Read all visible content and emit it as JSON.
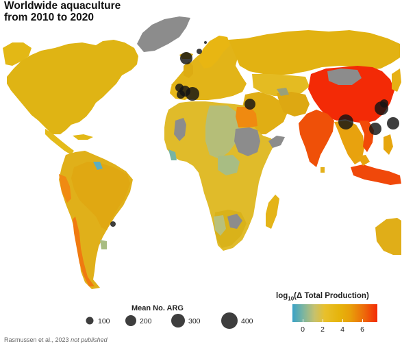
{
  "title": {
    "line1": "Worldwide aquaculture",
    "line2": "from 2010 to 2020"
  },
  "caption": {
    "author": "Rasmussen et al., 2023",
    "status": "not published"
  },
  "size_legend": {
    "title": "Mean No. ARG",
    "items": [
      {
        "label": "100",
        "value": 100
      },
      {
        "label": "200",
        "value": 200
      },
      {
        "label": "300",
        "value": 300
      },
      {
        "label": "400",
        "value": 400
      }
    ]
  },
  "color_legend": {
    "title_prefix": "log",
    "title_sub": "10",
    "title_suffix": "(Δ Total Production)",
    "ticks": [
      {
        "label": "0",
        "value": 0
      },
      {
        "label": "2",
        "value": 2
      },
      {
        "label": "4",
        "value": 4
      },
      {
        "label": "6",
        "value": 6
      }
    ],
    "range": [
      -0.5,
      7.3
    ]
  },
  "colors": {
    "no_data": "#8c8c8c",
    "low": "#3aa2c7",
    "mid_low": "#a8bd83",
    "mid": "#e6c01c",
    "mid_high": "#e0a814",
    "orange": "#f07a10",
    "high": "#f32a06",
    "ocean": "#ffffff",
    "bubble": "#141414"
  }
}
